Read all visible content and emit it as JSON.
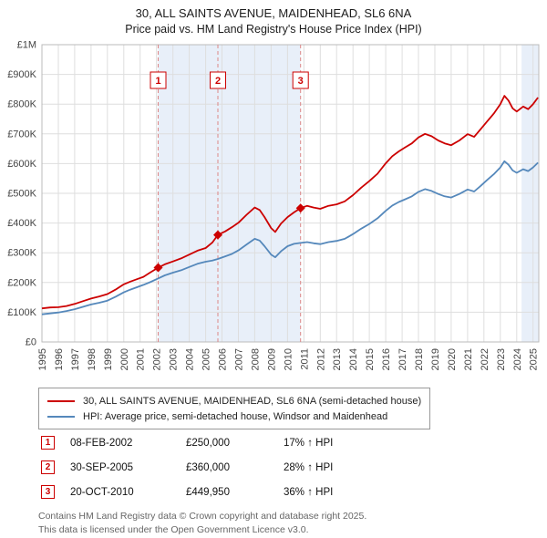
{
  "title": "30, ALL SAINTS AVENUE, MAIDENHEAD, SL6 6NA",
  "subtitle": "Price paid vs. HM Land Registry's House Price Index (HPI)",
  "chart_data": {
    "type": "line",
    "x_axis": {
      "min": 1995,
      "max": 2025.35,
      "ticks": [
        1995,
        1996,
        1997,
        1998,
        1999,
        2000,
        2001,
        2002,
        2003,
        2004,
        2005,
        2006,
        2007,
        2008,
        2009,
        2010,
        2011,
        2012,
        2013,
        2014,
        2015,
        2016,
        2017,
        2018,
        2019,
        2020,
        2021,
        2022,
        2023,
        2024,
        2025
      ]
    },
    "y_axis": {
      "min": 0,
      "max": 1000000,
      "ticks": [
        {
          "value": 0,
          "label": "£0"
        },
        {
          "value": 100000,
          "label": "£100K"
        },
        {
          "value": 200000,
          "label": "£200K"
        },
        {
          "value": 300000,
          "label": "£300K"
        },
        {
          "value": 400000,
          "label": "£400K"
        },
        {
          "value": 500000,
          "label": "£500K"
        },
        {
          "value": 600000,
          "label": "£600K"
        },
        {
          "value": 700000,
          "label": "£700K"
        },
        {
          "value": 800000,
          "label": "£800K"
        },
        {
          "value": 900000,
          "label": "£900K"
        },
        {
          "value": 1000000,
          "label": "£1M"
        }
      ]
    },
    "colors": {
      "property_line": "#cc0000",
      "hpi_line": "#5588bb",
      "band": "#e8eff9",
      "sale_dash_line": "#dd8888",
      "grid": "#dedede",
      "plot_border": "#bbbbbb"
    },
    "bands": [
      {
        "from": 2002.1,
        "to": 2010.8
      },
      {
        "from": 2024.3,
        "to": 2025.35
      }
    ],
    "sales": [
      {
        "n": "1",
        "x": 2002.1,
        "y": 250000
      },
      {
        "n": "2",
        "x": 2005.75,
        "y": 360000
      },
      {
        "n": "3",
        "x": 2010.8,
        "y": 449950
      }
    ],
    "series": [
      {
        "id": "property",
        "name": "30, ALL SAINTS AVENUE, MAIDENHEAD, SL6 6NA (semi-detached house)",
        "color": "#cc0000",
        "points": [
          [
            1995.0,
            113000
          ],
          [
            1995.5,
            116000
          ],
          [
            1996.0,
            117000
          ],
          [
            1996.5,
            121000
          ],
          [
            1997.0,
            128000
          ],
          [
            1997.5,
            137000
          ],
          [
            1998.0,
            146000
          ],
          [
            1998.5,
            153000
          ],
          [
            1999.0,
            161000
          ],
          [
            1999.5,
            176000
          ],
          [
            2000.0,
            194000
          ],
          [
            2000.4,
            203000
          ],
          [
            2000.8,
            211000
          ],
          [
            2001.2,
            219000
          ],
          [
            2001.6,
            233000
          ],
          [
            2002.1,
            250000
          ],
          [
            2002.5,
            261000
          ],
          [
            2003.0,
            271000
          ],
          [
            2003.5,
            281000
          ],
          [
            2004.0,
            294000
          ],
          [
            2004.5,
            307000
          ],
          [
            2005.0,
            316000
          ],
          [
            2005.4,
            334000
          ],
          [
            2005.75,
            360000
          ],
          [
            2006.2,
            372000
          ],
          [
            2006.6,
            386000
          ],
          [
            2007.0,
            401000
          ],
          [
            2007.5,
            428000
          ],
          [
            2008.0,
            452000
          ],
          [
            2008.3,
            444000
          ],
          [
            2008.6,
            420000
          ],
          [
            2009.0,
            383000
          ],
          [
            2009.25,
            370000
          ],
          [
            2009.6,
            398000
          ],
          [
            2010.0,
            420000
          ],
          [
            2010.4,
            436000
          ],
          [
            2010.8,
            449950
          ],
          [
            2011.2,
            458000
          ],
          [
            2011.6,
            452000
          ],
          [
            2012.0,
            448000
          ],
          [
            2012.5,
            458000
          ],
          [
            2013.0,
            463000
          ],
          [
            2013.5,
            473000
          ],
          [
            2014.0,
            494000
          ],
          [
            2014.5,
            519000
          ],
          [
            2015.0,
            541000
          ],
          [
            2015.5,
            566000
          ],
          [
            2016.0,
            601000
          ],
          [
            2016.4,
            625000
          ],
          [
            2016.8,
            641000
          ],
          [
            2017.2,
            655000
          ],
          [
            2017.6,
            668000
          ],
          [
            2018.0,
            688000
          ],
          [
            2018.4,
            700000
          ],
          [
            2018.8,
            692000
          ],
          [
            2019.2,
            678000
          ],
          [
            2019.6,
            668000
          ],
          [
            2020.0,
            662000
          ],
          [
            2020.5,
            678000
          ],
          [
            2021.0,
            699000
          ],
          [
            2021.4,
            690000
          ],
          [
            2021.8,
            716000
          ],
          [
            2022.2,
            742000
          ],
          [
            2022.6,
            768000
          ],
          [
            2023.0,
            800000
          ],
          [
            2023.25,
            828000
          ],
          [
            2023.5,
            812000
          ],
          [
            2023.75,
            786000
          ],
          [
            2024.0,
            775000
          ],
          [
            2024.4,
            792000
          ],
          [
            2024.7,
            783000
          ],
          [
            2025.0,
            800000
          ],
          [
            2025.3,
            822000
          ]
        ]
      },
      {
        "id": "hpi",
        "name": "HPI: Average price, semi-detached house, Windsor and Maidenhead",
        "color": "#5588bb",
        "points": [
          [
            1995.0,
            93000
          ],
          [
            1995.5,
            96000
          ],
          [
            1996.0,
            99000
          ],
          [
            1996.5,
            104000
          ],
          [
            1997.0,
            110000
          ],
          [
            1997.5,
            118000
          ],
          [
            1998.0,
            126000
          ],
          [
            1998.5,
            132000
          ],
          [
            1999.0,
            139000
          ],
          [
            1999.5,
            152000
          ],
          [
            2000.0,
            167000
          ],
          [
            2000.4,
            176000
          ],
          [
            2000.8,
            184000
          ],
          [
            2001.2,
            192000
          ],
          [
            2001.6,
            201000
          ],
          [
            2002.0,
            211000
          ],
          [
            2002.5,
            224000
          ],
          [
            2003.0,
            233000
          ],
          [
            2003.5,
            241000
          ],
          [
            2004.0,
            252000
          ],
          [
            2004.5,
            263000
          ],
          [
            2005.0,
            270000
          ],
          [
            2005.4,
            274000
          ],
          [
            2005.75,
            279000
          ],
          [
            2006.2,
            288000
          ],
          [
            2006.6,
            296000
          ],
          [
            2007.0,
            308000
          ],
          [
            2007.5,
            328000
          ],
          [
            2008.0,
            347000
          ],
          [
            2008.3,
            341000
          ],
          [
            2008.6,
            322000
          ],
          [
            2009.0,
            294000
          ],
          [
            2009.25,
            285000
          ],
          [
            2009.6,
            305000
          ],
          [
            2010.0,
            322000
          ],
          [
            2010.4,
            330000
          ],
          [
            2010.8,
            333000
          ],
          [
            2011.2,
            336000
          ],
          [
            2011.6,
            332000
          ],
          [
            2012.0,
            329000
          ],
          [
            2012.5,
            336000
          ],
          [
            2013.0,
            340000
          ],
          [
            2013.5,
            347000
          ],
          [
            2014.0,
            363000
          ],
          [
            2014.5,
            381000
          ],
          [
            2015.0,
            397000
          ],
          [
            2015.5,
            416000
          ],
          [
            2016.0,
            441000
          ],
          [
            2016.4,
            459000
          ],
          [
            2016.8,
            471000
          ],
          [
            2017.2,
            480000
          ],
          [
            2017.6,
            490000
          ],
          [
            2018.0,
            505000
          ],
          [
            2018.4,
            514000
          ],
          [
            2018.8,
            508000
          ],
          [
            2019.2,
            498000
          ],
          [
            2019.6,
            490000
          ],
          [
            2020.0,
            486000
          ],
          [
            2020.5,
            498000
          ],
          [
            2021.0,
            513000
          ],
          [
            2021.4,
            506000
          ],
          [
            2021.8,
            525000
          ],
          [
            2022.2,
            545000
          ],
          [
            2022.6,
            564000
          ],
          [
            2023.0,
            587000
          ],
          [
            2023.25,
            608000
          ],
          [
            2023.5,
            596000
          ],
          [
            2023.75,
            577000
          ],
          [
            2024.0,
            569000
          ],
          [
            2024.4,
            581000
          ],
          [
            2024.7,
            575000
          ],
          [
            2025.0,
            587000
          ],
          [
            2025.3,
            603000
          ]
        ]
      }
    ]
  },
  "legend": [
    {
      "label": "30, ALL SAINTS AVENUE, MAIDENHEAD, SL6 6NA (semi-detached house)",
      "color": "#cc0000"
    },
    {
      "label": "HPI: Average price, semi-detached house, Windsor and Maidenhead",
      "color": "#5588bb"
    }
  ],
  "transactions": [
    {
      "num": "1",
      "date": "08-FEB-2002",
      "price": "£250,000",
      "hpi_change": "17% ↑ HPI"
    },
    {
      "num": "2",
      "date": "30-SEP-2005",
      "price": "£360,000",
      "hpi_change": "28% ↑ HPI"
    },
    {
      "num": "3",
      "date": "20-OCT-2010",
      "price": "£449,950",
      "hpi_change": "36% ↑ HPI"
    }
  ],
  "footer": {
    "line1": "Contains HM Land Registry data © Crown copyright and database right 2025.",
    "line2": "This data is licensed under the Open Government Licence v3.0."
  }
}
